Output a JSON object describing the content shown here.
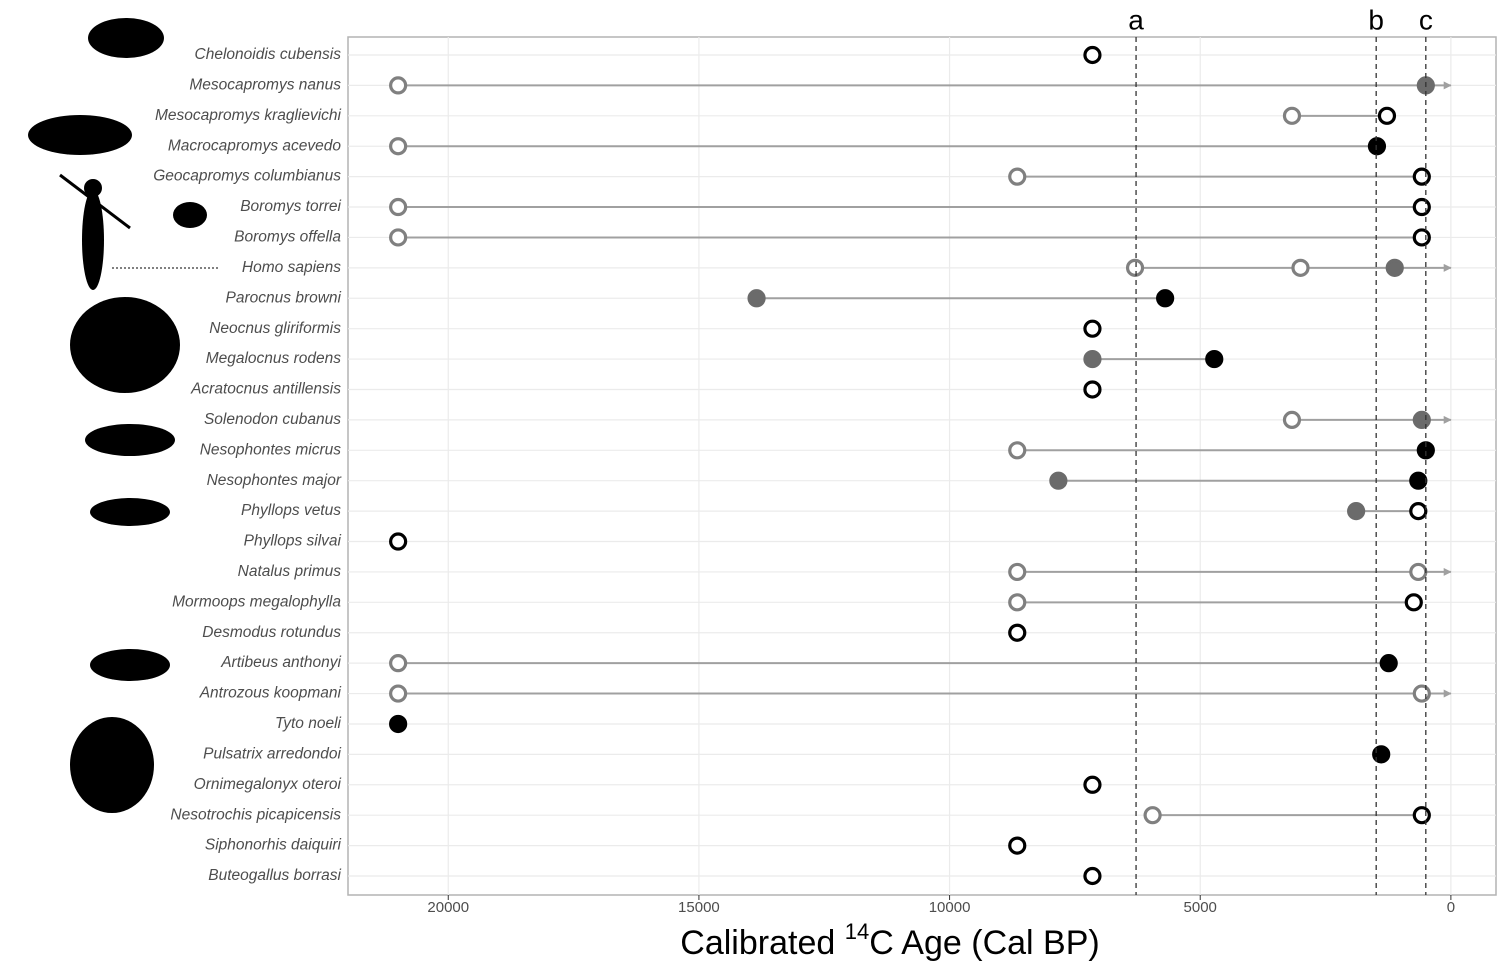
{
  "chart_data": {
    "type": "dotrange",
    "xlabel": [
      "Calibrated ",
      "14",
      "C Age (Cal BP)"
    ],
    "xlim": [
      22000,
      -900
    ],
    "xticks": [
      20000,
      15000,
      10000,
      5000,
      0
    ],
    "grid": true,
    "categories": [
      "Chelonoidis cubensis",
      "Mesocapromys nanus",
      "Mesocapromys kraglievichi",
      "Macrocapromys acevedo",
      "Geocapromys columbianus",
      "Boromys torrei",
      "Boromys offella",
      "Homo sapiens",
      "Parocnus browni",
      "Neocnus gliriformis",
      "Megalocnus rodens",
      "Acratocnus antillensis",
      "Solenodon cubanus",
      "Nesophontes micrus",
      "Nesophontes major",
      "Phyllops vetus",
      "Phyllops silvai",
      "Natalus primus",
      "Mormoops megalophylla",
      "Desmodus rotundus",
      "Artibeus anthonyi",
      "Antrozous koopmani",
      "Tyto noeli",
      "Pulsatrix arredondoi",
      "Ornimegalonyx oteroi",
      "Nesotrochis picapicensis",
      "Siphonorhis daiquiri",
      "Buteogallus borrasi"
    ],
    "rows": [
      {
        "points": [
          {
            "value": 7150,
            "stroke": "#000000",
            "fill": "#ffffff"
          }
        ]
      },
      {
        "points": [
          {
            "value": 21000,
            "stroke": "#808080",
            "fill": "#ffffff"
          },
          {
            "value": 500,
            "stroke": "#6b6b6b",
            "fill": "#6b6b6b"
          }
        ],
        "arrow": true
      },
      {
        "points": [
          {
            "value": 3170,
            "stroke": "#808080",
            "fill": "#ffffff"
          },
          {
            "value": 1275,
            "stroke": "#000000",
            "fill": "#ffffff"
          }
        ]
      },
      {
        "points": [
          {
            "value": 21000,
            "stroke": "#808080",
            "fill": "#ffffff"
          },
          {
            "value": 1475,
            "stroke": "#000000",
            "fill": "#000000"
          }
        ]
      },
      {
        "points": [
          {
            "value": 8650,
            "stroke": "#808080",
            "fill": "#ffffff"
          },
          {
            "value": 580,
            "stroke": "#000000",
            "fill": "#ffffff"
          }
        ]
      },
      {
        "points": [
          {
            "value": 21000,
            "stroke": "#808080",
            "fill": "#ffffff"
          },
          {
            "value": 580,
            "stroke": "#000000",
            "fill": "#ffffff"
          }
        ]
      },
      {
        "points": [
          {
            "value": 21000,
            "stroke": "#808080",
            "fill": "#ffffff"
          },
          {
            "value": 580,
            "stroke": "#000000",
            "fill": "#ffffff"
          }
        ]
      },
      {
        "points": [
          {
            "value": 6300,
            "stroke": "#808080",
            "fill": "#ffffff"
          },
          {
            "value": 3000,
            "stroke": "#808080",
            "fill": "#ffffff"
          },
          {
            "value": 1120,
            "stroke": "#6b6b6b",
            "fill": "#6b6b6b"
          }
        ],
        "arrow": true
      },
      {
        "points": [
          {
            "value": 13850,
            "stroke": "#6b6b6b",
            "fill": "#6b6b6b"
          },
          {
            "value": 5700,
            "stroke": "#000000",
            "fill": "#000000"
          }
        ]
      },
      {
        "points": [
          {
            "value": 7150,
            "stroke": "#000000",
            "fill": "#ffffff"
          }
        ]
      },
      {
        "points": [
          {
            "value": 7150,
            "stroke": "#6b6b6b",
            "fill": "#6b6b6b"
          },
          {
            "value": 4720,
            "stroke": "#000000",
            "fill": "#000000"
          }
        ]
      },
      {
        "points": [
          {
            "value": 7150,
            "stroke": "#000000",
            "fill": "#ffffff"
          }
        ]
      },
      {
        "points": [
          {
            "value": 3170,
            "stroke": "#808080",
            "fill": "#ffffff"
          },
          {
            "value": 580,
            "stroke": "#6b6b6b",
            "fill": "#6b6b6b"
          }
        ],
        "arrow": true
      },
      {
        "points": [
          {
            "value": 8650,
            "stroke": "#808080",
            "fill": "#ffffff"
          },
          {
            "value": 500,
            "stroke": "#000000",
            "fill": "#000000"
          }
        ]
      },
      {
        "points": [
          {
            "value": 7830,
            "stroke": "#6b6b6b",
            "fill": "#6b6b6b"
          },
          {
            "value": 650,
            "stroke": "#000000",
            "fill": "#000000"
          }
        ]
      },
      {
        "points": [
          {
            "value": 1890,
            "stroke": "#6b6b6b",
            "fill": "#6b6b6b"
          },
          {
            "value": 650,
            "stroke": "#000000",
            "fill": "#ffffff"
          }
        ]
      },
      {
        "points": [
          {
            "value": 21000,
            "stroke": "#000000",
            "fill": "#ffffff"
          }
        ]
      },
      {
        "points": [
          {
            "value": 8650,
            "stroke": "#808080",
            "fill": "#ffffff"
          },
          {
            "value": 650,
            "stroke": "#808080",
            "fill": "#ffffff"
          }
        ],
        "arrow": true
      },
      {
        "points": [
          {
            "value": 8650,
            "stroke": "#808080",
            "fill": "#ffffff"
          },
          {
            "value": 740,
            "stroke": "#000000",
            "fill": "#ffffff"
          }
        ]
      },
      {
        "points": [
          {
            "value": 8650,
            "stroke": "#000000",
            "fill": "#ffffff"
          }
        ]
      },
      {
        "points": [
          {
            "value": 21000,
            "stroke": "#808080",
            "fill": "#ffffff"
          },
          {
            "value": 1240,
            "stroke": "#000000",
            "fill": "#000000"
          }
        ]
      },
      {
        "points": [
          {
            "value": 21000,
            "stroke": "#808080",
            "fill": "#ffffff"
          },
          {
            "value": 580,
            "stroke": "#808080",
            "fill": "#ffffff"
          }
        ],
        "arrow": true
      },
      {
        "points": [
          {
            "value": 21000,
            "stroke": "#000000",
            "fill": "#000000"
          }
        ]
      },
      {
        "points": [
          {
            "value": 1390,
            "stroke": "#000000",
            "fill": "#000000"
          }
        ]
      },
      {
        "points": [
          {
            "value": 7150,
            "stroke": "#000000",
            "fill": "#ffffff"
          }
        ]
      },
      {
        "points": [
          {
            "value": 5950,
            "stroke": "#808080",
            "fill": "#ffffff"
          },
          {
            "value": 580,
            "stroke": "#000000",
            "fill": "#ffffff"
          }
        ]
      },
      {
        "points": [
          {
            "value": 8650,
            "stroke": "#000000",
            "fill": "#ffffff"
          }
        ]
      },
      {
        "points": [
          {
            "value": 7150,
            "stroke": "#000000",
            "fill": "#ffffff"
          }
        ]
      }
    ],
    "vlines": [
      {
        "value": 6280,
        "label": "a"
      },
      {
        "value": 1490,
        "label": "b"
      },
      {
        "value": 500,
        "label": "c"
      }
    ]
  }
}
